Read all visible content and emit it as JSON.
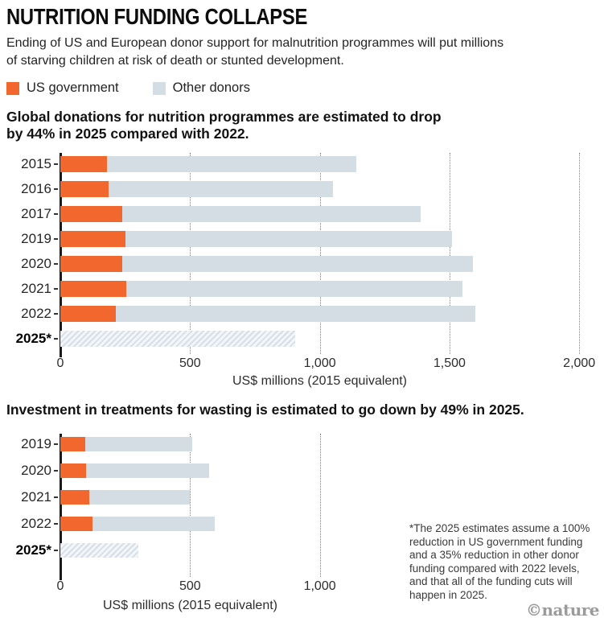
{
  "header": {
    "title": "NUTRITION FUNDING COLLAPSE",
    "subtitle": "Ending of US and European donor support for malnutrition programmes will put millions of starving children at risk of death or stunted development."
  },
  "legend": {
    "items": [
      {
        "label": "US government",
        "color_key": "us_government"
      },
      {
        "label": "Other donors",
        "color_key": "other_donors"
      }
    ]
  },
  "colors": {
    "us_government": "#F2672D",
    "other_donors": "#D4DDE3",
    "hatch_stripe": "#D6DFE6",
    "hatch_bg": "#F3F6F9",
    "axis": "#1A1A1A",
    "gridline": "#7F7F7F",
    "nature_logo": "#9B9B9B"
  },
  "chart_data": [
    {
      "type": "bar",
      "orientation": "horizontal",
      "stacked": true,
      "title": "Global donations for nutrition programmes are estimated to drop by 44% in 2025 compared with 2022.",
      "categories": [
        "2015",
        "2016",
        "2017",
        "2019",
        "2020",
        "2021",
        "2022",
        "2025*"
      ],
      "series": [
        {
          "name": "US government",
          "values": [
            180,
            185,
            240,
            250,
            240,
            255,
            215,
            0
          ]
        },
        {
          "name": "Other donors",
          "values": [
            960,
            865,
            1150,
            1260,
            1350,
            1295,
            1385,
            905
          ]
        }
      ],
      "totals": [
        1140,
        1050,
        1390,
        1510,
        1590,
        1550,
        1600,
        905
      ],
      "estimate_category": "2025*",
      "estimate_style": "diagonal-hatch",
      "xlabel": "US$ millions (2015 equivalent)",
      "xlim": [
        0,
        2070
      ],
      "xticks": [
        {
          "value": 0,
          "label": "0"
        },
        {
          "value": 500,
          "label": "500"
        },
        {
          "value": 1000,
          "label": "1,000"
        },
        {
          "value": 1500,
          "label": "1,500"
        },
        {
          "value": 2000,
          "label": "2,000"
        }
      ],
      "grid": "dotted-vertical",
      "legend_position": "top"
    },
    {
      "type": "bar",
      "orientation": "horizontal",
      "stacked": true,
      "title": "Investment in treatments for wasting is estimated to go down by 49% in 2025.",
      "categories": [
        "2019",
        "2020",
        "2021",
        "2022",
        "2025*"
      ],
      "series": [
        {
          "name": "US government",
          "values": [
            95,
            100,
            110,
            125,
            0
          ]
        },
        {
          "name": "Other donors",
          "values": [
            415,
            475,
            390,
            470,
            300
          ]
        }
      ],
      "totals": [
        510,
        575,
        500,
        595,
        300
      ],
      "estimate_category": "2025*",
      "estimate_style": "diagonal-hatch",
      "xlabel": "US$ millions (2015 equivalent)",
      "xlim": [
        0,
        2070
      ],
      "xticks": [
        {
          "value": 0,
          "label": "0"
        },
        {
          "value": 500,
          "label": "500"
        },
        {
          "value": 1000,
          "label": "1,000"
        }
      ],
      "grid": "dotted-vertical",
      "legend_position": "top"
    }
  ],
  "footnote": "*The 2025 estimates assume a 100% reduction in US government funding and a 35% reduction in other donor funding compared with 2022 levels, and that all of the funding cuts will happen in 2025.",
  "credit": "©nature"
}
